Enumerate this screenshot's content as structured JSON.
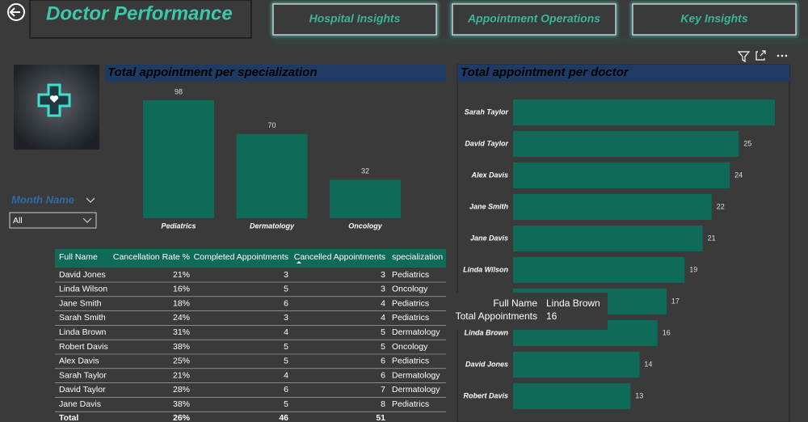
{
  "header": {
    "title": "Doctor Performance"
  },
  "nav": [
    "Hospital Insights",
    "Appointment Operations",
    "Key Insights"
  ],
  "slicer": {
    "label": "Month Name",
    "value": "All"
  },
  "chart_data": [
    {
      "type": "bar",
      "title": "Total appointment per specialization",
      "categories": [
        "Pediatrics",
        "Dermatology",
        "Oncology"
      ],
      "values": [
        98,
        70,
        32
      ],
      "color": "#0f6b58"
    },
    {
      "type": "hbar",
      "title": "Total appointment per doctor",
      "categories": [
        "Sarah Taylor",
        "David Taylor",
        "Alex Davis",
        "Jane Smith",
        "Jane Davis",
        "Linda Wilson",
        null,
        "Linda Brown",
        "David Jones",
        "Robert Davis"
      ],
      "values": [
        29,
        25,
        24,
        22,
        21,
        19,
        17,
        16,
        14,
        13
      ],
      "color": "#0f6b58"
    }
  ],
  "table": {
    "columns": [
      "Full Name",
      "Cancellation Rate %",
      "Completed Appointments",
      "Cancelled Appointments",
      "specialization"
    ],
    "rows": [
      [
        "David Jones",
        "21%",
        3,
        3,
        "Pediatrics"
      ],
      [
        "Linda Wilson",
        "16%",
        5,
        3,
        "Oncology"
      ],
      [
        "Jane Smith",
        "18%",
        6,
        4,
        "Pediatrics"
      ],
      [
        "Sarah Smith",
        "24%",
        3,
        4,
        "Pediatrics"
      ],
      [
        "Linda Brown",
        "31%",
        4,
        5,
        "Dermatology"
      ],
      [
        "Robert Davis",
        "38%",
        5,
        5,
        "Oncology"
      ],
      [
        "Alex Davis",
        "25%",
        5,
        6,
        "Pediatrics"
      ],
      [
        "Sarah Taylor",
        "21%",
        4,
        6,
        "Dermatology"
      ],
      [
        "David Taylor",
        "28%",
        6,
        7,
        "Dermatology"
      ],
      [
        "Jane Davis",
        "38%",
        5,
        8,
        "Pediatrics"
      ]
    ],
    "total": [
      "Total",
      "26%",
      46,
      51
    ]
  },
  "tooltip": {
    "fields": [
      [
        "Full Name",
        "Linda Brown"
      ],
      [
        "Total Appointments",
        16
      ]
    ]
  }
}
